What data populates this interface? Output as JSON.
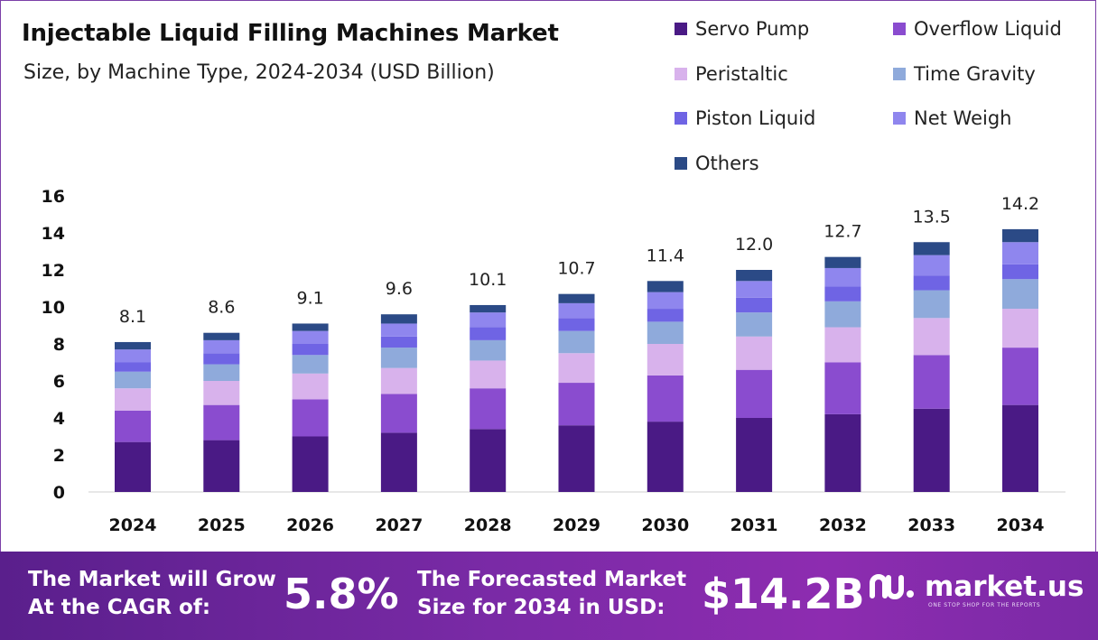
{
  "header": {
    "title": "Injectable Liquid Filling Machines Market",
    "subtitle": "Size, by Machine Type, 2024-2034 (USD Billion)"
  },
  "chart_data": {
    "type": "bar",
    "stacked": true,
    "categories": [
      "2024",
      "2025",
      "2026",
      "2027",
      "2028",
      "2029",
      "2030",
      "2031",
      "2032",
      "2033",
      "2034"
    ],
    "totals": [
      8.1,
      8.6,
      9.1,
      9.6,
      10.1,
      10.7,
      11.4,
      12.0,
      12.7,
      13.5,
      14.2
    ],
    "total_labels": [
      "8.1",
      "8.6",
      "9.1",
      "9.6",
      "10.1",
      "10.7",
      "11.4",
      "12.0",
      "12.7",
      "13.5",
      "14.2"
    ],
    "series": [
      {
        "name": "Servo Pump",
        "color": "#4a1a85",
        "values": [
          2.7,
          2.8,
          3.0,
          3.2,
          3.4,
          3.6,
          3.8,
          4.0,
          4.2,
          4.5,
          4.7
        ]
      },
      {
        "name": "Overflow Liquid",
        "color": "#8a4ccf",
        "values": [
          1.7,
          1.9,
          2.0,
          2.1,
          2.2,
          2.3,
          2.5,
          2.6,
          2.8,
          2.9,
          3.1
        ]
      },
      {
        "name": "Peristaltic",
        "color": "#d8b2ec",
        "values": [
          1.2,
          1.3,
          1.4,
          1.4,
          1.5,
          1.6,
          1.7,
          1.8,
          1.9,
          2.0,
          2.1
        ]
      },
      {
        "name": "Time Gravity",
        "color": "#8faadb",
        "values": [
          0.9,
          0.9,
          1.0,
          1.1,
          1.1,
          1.2,
          1.2,
          1.3,
          1.4,
          1.5,
          1.6
        ]
      },
      {
        "name": "Piston Liquid",
        "color": "#6f64e4",
        "values": [
          0.5,
          0.6,
          0.6,
          0.6,
          0.7,
          0.7,
          0.7,
          0.8,
          0.8,
          0.8,
          0.8
        ]
      },
      {
        "name": "Net Weigh",
        "color": "#8f86ee",
        "values": [
          0.7,
          0.7,
          0.7,
          0.7,
          0.8,
          0.8,
          0.9,
          0.9,
          1.0,
          1.1,
          1.2
        ]
      },
      {
        "name": "Others",
        "color": "#2b4a86",
        "values": [
          0.4,
          0.4,
          0.4,
          0.5,
          0.4,
          0.5,
          0.6,
          0.6,
          0.6,
          0.7,
          0.7
        ]
      }
    ],
    "yticks": [
      0,
      2,
      4,
      6,
      8,
      10,
      12,
      14,
      16
    ],
    "ylim": [
      0,
      16
    ],
    "xlabel": "",
    "ylabel": "",
    "grid": false,
    "legend_position": "top-right"
  },
  "footer": {
    "cagr_text_line1": "The Market will Grow",
    "cagr_text_line2": "At the CAGR of:",
    "cagr_value": "5.8%",
    "forecast_text_line1": "The Forecasted Market",
    "forecast_text_line2": "Size for 2034 in USD:",
    "forecast_value": "$14.2B",
    "brand_name": "market.us",
    "brand_tagline": "ONE STOP SHOP FOR THE REPORTS"
  },
  "colors": {
    "footer_bg": "#6a2496",
    "frame_border": "#7b3fa8"
  }
}
